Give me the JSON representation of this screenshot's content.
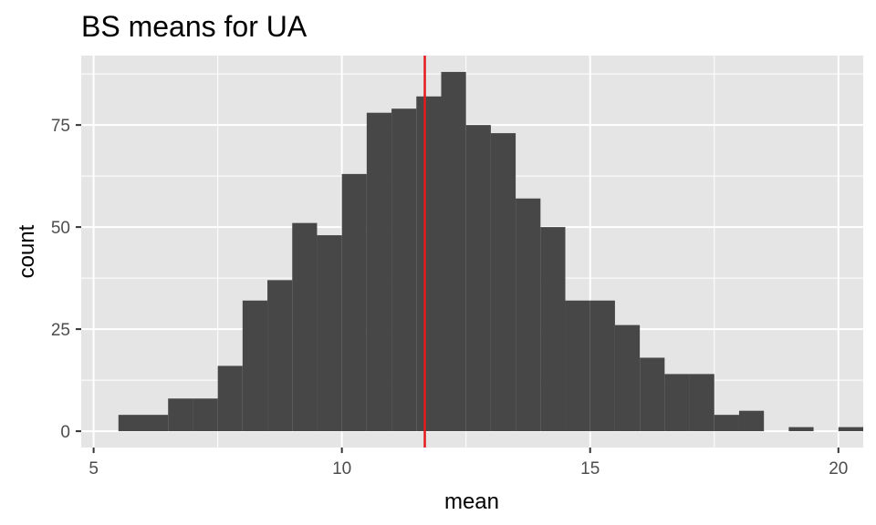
{
  "chart_data": {
    "type": "bar",
    "title": "BS means for UA",
    "xlabel": "mean",
    "ylabel": "count",
    "xlim": [
      5,
      20
    ],
    "ylim": [
      0,
      90
    ],
    "x_ticks": [
      5,
      10,
      15,
      20
    ],
    "y_ticks": [
      0,
      25,
      50,
      75
    ],
    "grid": true,
    "bin_width": 0.5,
    "bins": [
      {
        "x": 5.75,
        "count": 4
      },
      {
        "x": 6.25,
        "count": 4
      },
      {
        "x": 6.75,
        "count": 8
      },
      {
        "x": 7.25,
        "count": 8
      },
      {
        "x": 7.75,
        "count": 16
      },
      {
        "x": 8.25,
        "count": 32
      },
      {
        "x": 8.75,
        "count": 37
      },
      {
        "x": 9.25,
        "count": 51
      },
      {
        "x": 9.75,
        "count": 48
      },
      {
        "x": 10.25,
        "count": 63
      },
      {
        "x": 10.75,
        "count": 78
      },
      {
        "x": 11.25,
        "count": 79
      },
      {
        "x": 11.75,
        "count": 82
      },
      {
        "x": 12.25,
        "count": 88
      },
      {
        "x": 12.75,
        "count": 75
      },
      {
        "x": 13.25,
        "count": 73
      },
      {
        "x": 13.75,
        "count": 57
      },
      {
        "x": 14.25,
        "count": 50
      },
      {
        "x": 14.75,
        "count": 32
      },
      {
        "x": 15.25,
        "count": 32
      },
      {
        "x": 15.75,
        "count": 26
      },
      {
        "x": 16.25,
        "count": 18
      },
      {
        "x": 16.75,
        "count": 14
      },
      {
        "x": 17.25,
        "count": 14
      },
      {
        "x": 17.75,
        "count": 4
      },
      {
        "x": 18.25,
        "count": 5
      },
      {
        "x": 18.75,
        "count": 0
      },
      {
        "x": 19.25,
        "count": 1
      },
      {
        "x": 19.75,
        "count": 0
      },
      {
        "x": 20.25,
        "count": 1
      }
    ],
    "reference_line": {
      "x": 11.67,
      "color": "#e41a1c"
    },
    "bar_color": "#474747",
    "panel_color": "#e5e5e5",
    "grid_color": "#ffffff"
  }
}
